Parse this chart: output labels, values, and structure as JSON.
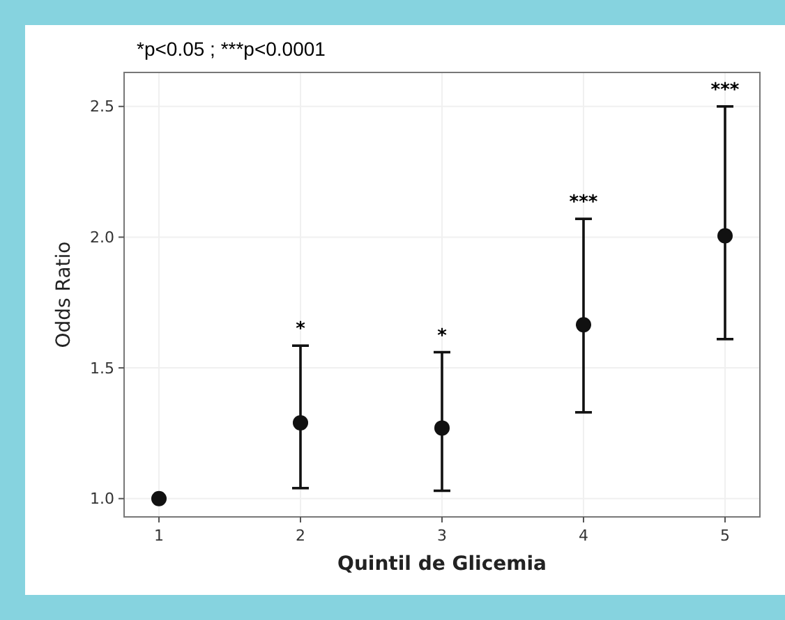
{
  "chart_data": {
    "type": "scatter",
    "xlabel": "Quintil de Glicemia",
    "ylabel": "Odds Ratio",
    "categories": [
      "1",
      "2",
      "3",
      "4",
      "5"
    ],
    "series": [
      {
        "color": "#111111",
        "values": [
          1.0,
          1.29,
          1.27,
          1.665,
          2.005
        ],
        "errors": [
          null,
          [
            1.04,
            1.585
          ],
          [
            1.03,
            1.56
          ],
          [
            1.33,
            2.07
          ],
          [
            1.61,
            2.5
          ]
        ]
      }
    ],
    "ylim": [
      0.93,
      2.63
    ],
    "yticks": [
      {
        "value": 1.0,
        "label": "1.0"
      },
      1.5,
      {
        "value": 2.0,
        "label": "2.0"
      },
      2.5
    ],
    "grid": true,
    "marker": "circle",
    "annotations": [
      "*p<0.05 ;  ***p<0.0001",
      {
        "text": "*",
        "x": "2",
        "y": 1.585
      },
      {
        "text": "*",
        "x": "3",
        "y": 1.56
      },
      {
        "text": "***",
        "x": "4",
        "y": 2.07
      },
      {
        "text": "***",
        "x": "5",
        "y": 2.5
      }
    ]
  }
}
